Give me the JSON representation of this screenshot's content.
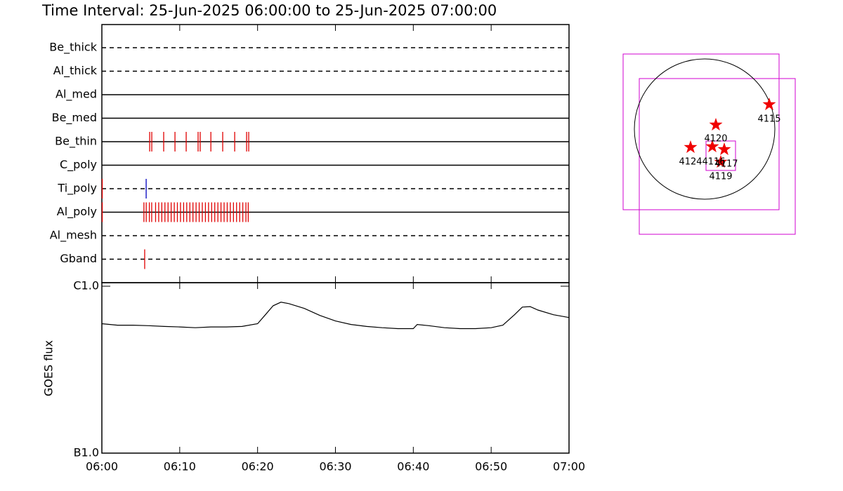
{
  "chart_data": [
    {
      "type": "event",
      "title": "Time Interval: 25-Jun-2025 06:00:00 to 25-Jun-2025 07:00:00",
      "xlim": [
        0,
        60
      ],
      "xticks": [
        {
          "value": 0,
          "label": "06:00"
        },
        {
          "value": 10,
          "label": "06:10"
        },
        {
          "value": 20,
          "label": "06:20"
        },
        {
          "value": 30,
          "label": "06:30"
        },
        {
          "value": 40,
          "label": "06:40"
        },
        {
          "value": 50,
          "label": "06:50"
        },
        {
          "value": 60,
          "label": "07:00"
        }
      ],
      "rows": [
        {
          "name": "Be_thick",
          "style": "dashed",
          "series": []
        },
        {
          "name": "Al_thick",
          "style": "dashed",
          "series": []
        },
        {
          "name": "Al_med",
          "style": "solid",
          "series": []
        },
        {
          "name": "Be_med",
          "style": "solid",
          "series": []
        },
        {
          "name": "Be_thin",
          "style": "solid",
          "series": [
            {
              "color": "#e00000",
              "values": [
                6.14,
                6.41,
                7.94,
                9.39,
                10.83,
                12.36,
                12.63,
                14.0,
                15.52,
                17.06,
                18.59,
                18.86
              ]
            }
          ]
        },
        {
          "name": "C_poly",
          "style": "solid",
          "series": []
        },
        {
          "name": "Ti_poly",
          "style": "dashed",
          "series": [
            {
              "color": "#e00000",
              "values": [
                0.05
              ]
            },
            {
              "color": "#0000c0",
              "values": [
                5.69
              ]
            }
          ]
        },
        {
          "name": "Al_poly",
          "style": "solid",
          "series": [
            {
              "color": "#e00000",
              "values": [
                0.05,
                5.4,
                5.7,
                6.1,
                6.4,
                6.9,
                7.3,
                7.7,
                8.1,
                8.5,
                8.9,
                9.3,
                9.7,
                10.1,
                10.5,
                10.9,
                11.3,
                11.7,
                12.1,
                12.5,
                12.9,
                13.3,
                13.7,
                14.1,
                14.5,
                14.9,
                15.3,
                15.7,
                16.1,
                16.5,
                16.9,
                17.3,
                17.7,
                18.1,
                18.5,
                18.8
              ]
            }
          ]
        },
        {
          "name": "Al_mesh",
          "style": "dashed",
          "series": []
        },
        {
          "name": "Gband",
          "style": "dashed",
          "series": [
            {
              "color": "#e00000",
              "values": [
                5.5
              ]
            }
          ]
        }
      ]
    },
    {
      "type": "line",
      "y_label": "GOES flux",
      "log_y": true,
      "color": "#000000",
      "xlim": [
        0,
        60
      ],
      "xticks": [
        {
          "value": 0,
          "label": "06:00"
        },
        {
          "value": 10,
          "label": "06:10"
        },
        {
          "value": 20,
          "label": "06:20"
        },
        {
          "value": 30,
          "label": "06:30"
        },
        {
          "value": 40,
          "label": "06:40"
        },
        {
          "value": 50,
          "label": "06:50"
        },
        {
          "value": 60,
          "label": "07:00"
        }
      ],
      "ylim": [
        1e-07,
        1.05e-06
      ],
      "yticks": [
        {
          "value": 1e-06,
          "label": "C1.0"
        },
        {
          "value": 1e-07,
          "label": "B1.0"
        }
      ],
      "x": [
        0,
        2,
        4,
        6,
        8,
        10,
        12,
        14,
        16,
        18,
        20,
        21,
        22,
        23,
        24,
        26,
        28,
        30,
        32,
        34,
        36,
        38,
        40,
        40.5,
        42,
        44,
        46,
        48,
        50,
        51.5,
        53,
        54,
        55,
        56,
        58,
        60
      ],
      "values": [
        5.96e-07,
        5.84e-07,
        5.84e-07,
        5.8e-07,
        5.74e-07,
        5.7e-07,
        5.64e-07,
        5.7e-07,
        5.7e-07,
        5.74e-07,
        5.96e-07,
        6.75e-07,
        7.64e-07,
        8.02e-07,
        7.87e-07,
        7.36e-07,
        6.68e-07,
        6.19e-07,
        5.9e-07,
        5.74e-07,
        5.64e-07,
        5.57e-07,
        5.57e-07,
        5.9e-07,
        5.8e-07,
        5.64e-07,
        5.57e-07,
        5.57e-07,
        5.64e-07,
        5.84e-07,
        6.75e-07,
        7.5e-07,
        7.55e-07,
        7.2e-07,
        6.75e-07,
        6.49e-07
      ]
    }
  ],
  "map": {
    "regions": [
      {
        "label": "4115"
      },
      {
        "label": "4120"
      },
      {
        "label": "4124"
      },
      {
        "label": "4116"
      },
      {
        "label": "4117"
      },
      {
        "label": "4119"
      }
    ]
  }
}
